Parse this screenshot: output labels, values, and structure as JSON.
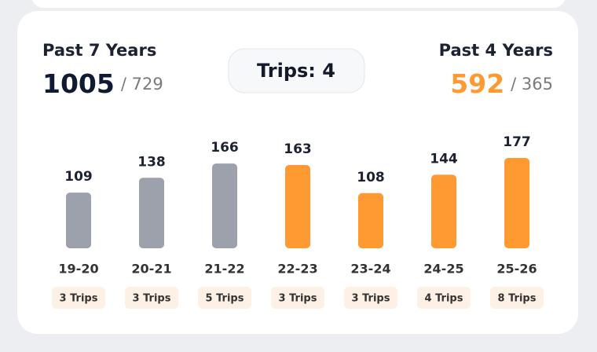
{
  "header": {
    "left_title": "Past 7 Years",
    "left_value": 1005,
    "left_total": "/ 729",
    "trips": "Trips: 4",
    "right_title": "Past 4 Years",
    "right_value": 592,
    "right_total": "/ 365"
  },
  "chart_data": {
    "type": "bar",
    "categories": [
      "19-20",
      "20-21",
      "21-22",
      "22-23",
      "23-24",
      "24-25",
      "25-26"
    ],
    "values": [
      109,
      138,
      166,
      163,
      108,
      144,
      177
    ],
    "colors": [
      "#9ca1ab",
      "#9ca1ab",
      "#9ca1ab",
      "#ff9a33",
      "#ff9a33",
      "#ff9a33",
      "#ff9a33"
    ],
    "trip_labels": [
      "3 Trips",
      "3 Trips",
      "5 Trips",
      "3 Trips",
      "3 Trips",
      "4 Trips",
      "8 Trips"
    ]
  }
}
